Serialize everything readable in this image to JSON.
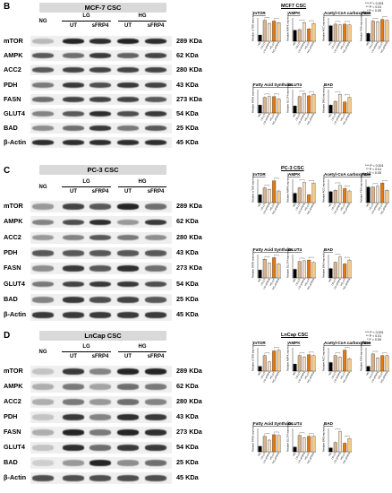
{
  "panels": [
    {
      "id": "panel-b",
      "letter": "B",
      "blot_title": "MCF-7 CSC",
      "charts_title": "MCF7 CSC",
      "lanes": [
        "NG",
        "UT",
        "sFRP4",
        "UT",
        "sFRP4"
      ],
      "groups": [
        "LG",
        "HG"
      ],
      "proteins": [
        "mTOR",
        "AMPK",
        "ACC2",
        "PDH",
        "FASN",
        "GLUT4",
        "BAD",
        "β-Actin"
      ],
      "kda": [
        "289 KDa",
        "62 KDa",
        "280 KDa",
        "43 KDa",
        "273 KDa",
        "54 KDa",
        "25 KDa",
        "45 KDa"
      ],
      "band_intensity": [
        [
          0.25,
          0.95,
          0.9,
          0.95,
          0.9
        ],
        [
          0.7,
          0.6,
          0.85,
          0.65,
          0.8
        ],
        [
          0.7,
          0.8,
          0.8,
          0.8,
          0.8
        ],
        [
          0.55,
          0.85,
          0.75,
          0.85,
          0.8
        ],
        [
          0.6,
          0.8,
          0.8,
          0.8,
          0.7
        ],
        [
          0.5,
          0.7,
          0.9,
          0.75,
          0.85
        ],
        [
          0.45,
          0.6,
          0.85,
          0.55,
          0.7
        ],
        [
          0.9,
          0.9,
          0.9,
          0.9,
          0.9
        ]
      ]
    },
    {
      "id": "panel-c",
      "letter": "C",
      "blot_title": "PC-3 CSC",
      "charts_title": "PC-3 CSC",
      "lanes": [
        "NG",
        "UT",
        "sFRP4",
        "UT",
        "sFRP4"
      ],
      "groups": [
        "LG",
        "HG"
      ],
      "proteins": [
        "mTOR",
        "AMPK",
        "ACC2",
        "PDH",
        "FASN",
        "GLUT4",
        "BAD",
        "β-Actin"
      ],
      "kda": [
        "289 KDa",
        "62 KDa",
        "280 KDa",
        "43 KDa",
        "273 KDa",
        "54 KDa",
        "25 KDa",
        "45 KDa"
      ],
      "band_intensity": [
        [
          0.4,
          0.8,
          0.7,
          0.95,
          0.6
        ],
        [
          0.5,
          0.75,
          0.9,
          0.4,
          0.85
        ],
        [
          0.4,
          0.5,
          0.7,
          0.55,
          0.45
        ],
        [
          0.7,
          0.7,
          0.7,
          0.7,
          0.7
        ],
        [
          0.45,
          0.85,
          0.7,
          0.9,
          0.6
        ],
        [
          0.55,
          0.8,
          0.85,
          0.85,
          0.75
        ],
        [
          0.5,
          0.85,
          0.75,
          0.8,
          0.7
        ],
        [
          0.85,
          0.85,
          0.85,
          0.85,
          0.85
        ]
      ]
    },
    {
      "id": "panel-d",
      "letter": "D",
      "blot_title": "LnCap CSC",
      "charts_title": "LnCap CSC",
      "lanes": [
        "NG",
        "UT",
        "sFRP4",
        "UT",
        "sFRP4"
      ],
      "groups": [
        "LG",
        "HG"
      ],
      "proteins": [
        "mTOR",
        "AMPK",
        "ACC2",
        "PDH",
        "FASN",
        "GLUT4",
        "BAD",
        "β-Actin"
      ],
      "kda": [
        "289 KDa",
        "62 KDa",
        "280 KDa",
        "43 KDa",
        "273 KDa",
        "54 KDa",
        "25 KDa",
        "45 KDa"
      ],
      "band_intensity": [
        [
          0.2,
          0.85,
          0.5,
          0.95,
          0.95
        ],
        [
          0.3,
          0.55,
          0.35,
          0.6,
          0.55
        ],
        [
          0.3,
          0.55,
          0.4,
          0.6,
          0.5
        ],
        [
          0.2,
          0.85,
          0.5,
          0.9,
          0.85
        ],
        [
          0.3,
          0.95,
          0.55,
          0.95,
          0.9
        ],
        [
          0.2,
          0.9,
          0.6,
          0.85,
          0.85
        ],
        [
          0.15,
          0.4,
          0.95,
          0.45,
          0.6
        ],
        [
          0.75,
          0.75,
          0.75,
          0.75,
          0.75
        ]
      ]
    }
  ],
  "significance_legend": "*** P < 0.001\n ** P < 0.01\n  * P < 0.05",
  "colors": {
    "blot_background": "#efefef",
    "band": "#1a1a1a",
    "title_box": "#d9d9d9",
    "bar_ng": "#000000",
    "bar_lg_ut": "#d9b38c",
    "bar_lg_sfrp4": "#f2e2cf",
    "bar_hg_ut": "#e07b14",
    "bar_hg_sfrp4": "#f5c98a"
  },
  "chart_data": [
    {
      "type": "bar",
      "panel": "B",
      "title": "mTOR",
      "ylabel": "Relative mTOR expression",
      "ylim": [
        0,
        1.5
      ],
      "categories": [
        "NG",
        "LG-UT",
        "LG-sFRP4",
        "HG-UT",
        "HG-sFRP4"
      ],
      "values": [
        0.4,
        1.35,
        1.15,
        1.3,
        1.2
      ]
    },
    {
      "type": "bar",
      "panel": "B",
      "title": "AMPK",
      "ylabel": "Relative AMPK expression",
      "ylim": [
        0,
        1.5
      ],
      "categories": [
        "NG",
        "LG-UT",
        "LG-sFRP4",
        "HG-UT",
        "HG-sFRP4"
      ],
      "values": [
        0.7,
        0.75,
        1.2,
        0.8,
        1.15
      ]
    },
    {
      "type": "bar",
      "panel": "B",
      "title": "Acetyl-CoA carboxylase",
      "ylabel": "Relative ACC expression",
      "ylim": [
        0,
        1.5
      ],
      "categories": [
        "NG",
        "LG-UT",
        "LG-sFRP4",
        "HG-UT",
        "HG-sFRP4"
      ],
      "values": [
        1.0,
        1.1,
        1.05,
        1.1,
        1.05
      ]
    },
    {
      "type": "bar",
      "panel": "B",
      "title": "PDH",
      "ylabel": "Relative PDH expression",
      "ylim": [
        0,
        1.5
      ],
      "categories": [
        "NG",
        "LG-UT",
        "LG-sFRP4",
        "HG-UT",
        "HG-sFRP4"
      ],
      "values": [
        0.5,
        1.3,
        1.25,
        1.4,
        1.35
      ]
    },
    {
      "type": "bar",
      "panel": "B",
      "title": "Fatty Acid Synthase",
      "ylabel": "Relative FASN expression",
      "ylim": [
        0,
        1.5
      ],
      "categories": [
        "NG",
        "LG-UT",
        "LG-sFRP4",
        "HG-UT",
        "HG-sFRP4"
      ],
      "values": [
        0.5,
        1.0,
        1.05,
        1.05,
        0.9
      ]
    },
    {
      "type": "bar",
      "panel": "B",
      "title": "GLUT4",
      "ylabel": "Relative GLUT4 expression",
      "ylim": [
        0,
        1.5
      ],
      "categories": [
        "NG",
        "LG-UT",
        "LG-sFRP4",
        "HG-UT",
        "HG-sFRP4"
      ],
      "values": [
        0.45,
        1.05,
        1.25,
        1.1,
        1.2
      ]
    },
    {
      "type": "bar",
      "panel": "B",
      "title": "BAD",
      "ylabel": "Relative BAD expression",
      "ylim": [
        0,
        1.5
      ],
      "categories": [
        "NG",
        "LG-UT",
        "LG-sFRP4",
        "HG-UT",
        "HG-sFRP4"
      ],
      "values": [
        0.5,
        0.75,
        1.2,
        0.7,
        1.0
      ]
    },
    {
      "type": "bar",
      "panel": "C",
      "title": "mTOR",
      "ylabel": "Relative mTOR expression",
      "ylim": [
        0,
        1.5
      ],
      "categories": [
        "NG",
        "LG-UT",
        "LG-sFRP4",
        "HG-UT",
        "HG-sFRP4"
      ],
      "values": [
        0.5,
        0.95,
        0.85,
        1.4,
        0.75
      ]
    },
    {
      "type": "bar",
      "panel": "C",
      "title": "AMPK",
      "ylabel": "Relative AMPK expression",
      "ylim": [
        0,
        1.5
      ],
      "categories": [
        "NG",
        "LG-UT",
        "LG-sFRP4",
        "HG-UT",
        "HG-sFRP4"
      ],
      "values": [
        0.6,
        0.95,
        1.3,
        0.5,
        1.25
      ]
    },
    {
      "type": "bar",
      "panel": "C",
      "title": "Acetyl-CoA carboxylase",
      "ylabel": "Relative ACC expression",
      "ylim": [
        0,
        1.5
      ],
      "categories": [
        "NG",
        "LG-UT",
        "LG-sFRP4",
        "HG-UT",
        "HG-sFRP4"
      ],
      "values": [
        0.7,
        0.8,
        1.1,
        0.9,
        0.75
      ]
    },
    {
      "type": "bar",
      "panel": "C",
      "title": "PDH",
      "ylabel": "Relative PDH expression",
      "ylim": [
        0,
        1.5
      ],
      "categories": [
        "NG",
        "LG-UT",
        "LG-sFRP4",
        "HG-UT",
        "HG-sFRP4"
      ],
      "values": [
        1.0,
        1.0,
        1.05,
        1.25,
        0.8
      ]
    },
    {
      "type": "bar",
      "panel": "C",
      "title": "Fatty Acid Synthase",
      "ylabel": "Relative FASN expression",
      "ylim": [
        0,
        1.5
      ],
      "categories": [
        "NG",
        "LG-UT",
        "LG-sFRP4",
        "HG-UT",
        "HG-sFRP4"
      ],
      "values": [
        0.5,
        1.2,
        0.95,
        1.3,
        0.9
      ]
    },
    {
      "type": "bar",
      "panel": "C",
      "title": "GLUT4",
      "ylabel": "Relative GLUT4 expression",
      "ylim": [
        0,
        1.5
      ],
      "categories": [
        "NG",
        "LG-UT",
        "LG-sFRP4",
        "HG-UT",
        "HG-sFRP4"
      ],
      "values": [
        0.55,
        1.05,
        1.1,
        1.15,
        1.0
      ]
    },
    {
      "type": "bar",
      "panel": "C",
      "title": "BAD",
      "ylabel": "Relative BAD expression",
      "ylim": [
        0,
        1.5
      ],
      "categories": [
        "NG",
        "LG-UT",
        "LG-sFRP4",
        "HG-UT",
        "HG-sFRP4"
      ],
      "values": [
        0.6,
        1.0,
        1.35,
        0.9,
        1.15
      ]
    },
    {
      "type": "bar",
      "panel": "D",
      "title": "mTOR",
      "ylabel": "Relative mTOR expression",
      "ylim": [
        0,
        1.5
      ],
      "categories": [
        "NG",
        "LG-UT",
        "LG-sFRP4",
        "HG-UT",
        "HG-sFRP4"
      ],
      "values": [
        0.3,
        1.0,
        0.6,
        1.3,
        1.35
      ]
    },
    {
      "type": "bar",
      "panel": "D",
      "title": "AMPK",
      "ylabel": "Relative AMPK expression",
      "ylim": [
        0,
        1.5
      ],
      "categories": [
        "NG",
        "LG-UT",
        "LG-sFRP4",
        "HG-UT",
        "HG-sFRP4"
      ],
      "values": [
        0.45,
        1.0,
        0.9,
        1.05,
        1.0
      ]
    },
    {
      "type": "bar",
      "panel": "D",
      "title": "Acetyl-CoA carboxylase",
      "ylabel": "Relative ACC expression",
      "ylim": [
        0,
        1.5
      ],
      "categories": [
        "NG",
        "LG-UT",
        "LG-sFRP4",
        "HG-UT",
        "HG-sFRP4"
      ],
      "values": [
        0.55,
        1.0,
        0.9,
        1.35,
        0.8
      ]
    },
    {
      "type": "bar",
      "panel": "D",
      "title": "PDH",
      "ylabel": "Relative PDH expression",
      "ylim": [
        0,
        1.5
      ],
      "categories": [
        "NG",
        "LG-UT",
        "LG-sFRP4",
        "HG-UT",
        "HG-sFRP4"
      ],
      "values": [
        0.3,
        1.1,
        0.85,
        1.0,
        1.0
      ]
    },
    {
      "type": "bar",
      "panel": "D",
      "title": "Fatty Acid Synthase",
      "ylabel": "Relative FASN expression",
      "ylim": [
        0,
        1.5
      ],
      "categories": [
        "NG",
        "LG-UT",
        "LG-sFRP4",
        "HG-UT",
        "HG-sFRP4"
      ],
      "values": [
        0.35,
        1.0,
        0.75,
        1.1,
        1.05
      ]
    },
    {
      "type": "bar",
      "panel": "D",
      "title": "GLUT4",
      "ylabel": "Relative GLUT4 expression",
      "ylim": [
        0,
        1.5
      ],
      "categories": [
        "NG",
        "LG-UT",
        "LG-sFRP4",
        "HG-UT",
        "HG-sFRP4"
      ],
      "values": [
        0.3,
        1.05,
        0.9,
        1.0,
        1.0
      ]
    },
    {
      "type": "bar",
      "panel": "D",
      "title": "BAD",
      "ylabel": "Relative BAD expression",
      "ylim": [
        0,
        1.5
      ],
      "categories": [
        "NG",
        "LG-UT",
        "LG-sFRP4",
        "HG-UT",
        "HG-sFRP4"
      ],
      "values": [
        0.25,
        0.6,
        1.3,
        0.55,
        0.85
      ]
    }
  ]
}
